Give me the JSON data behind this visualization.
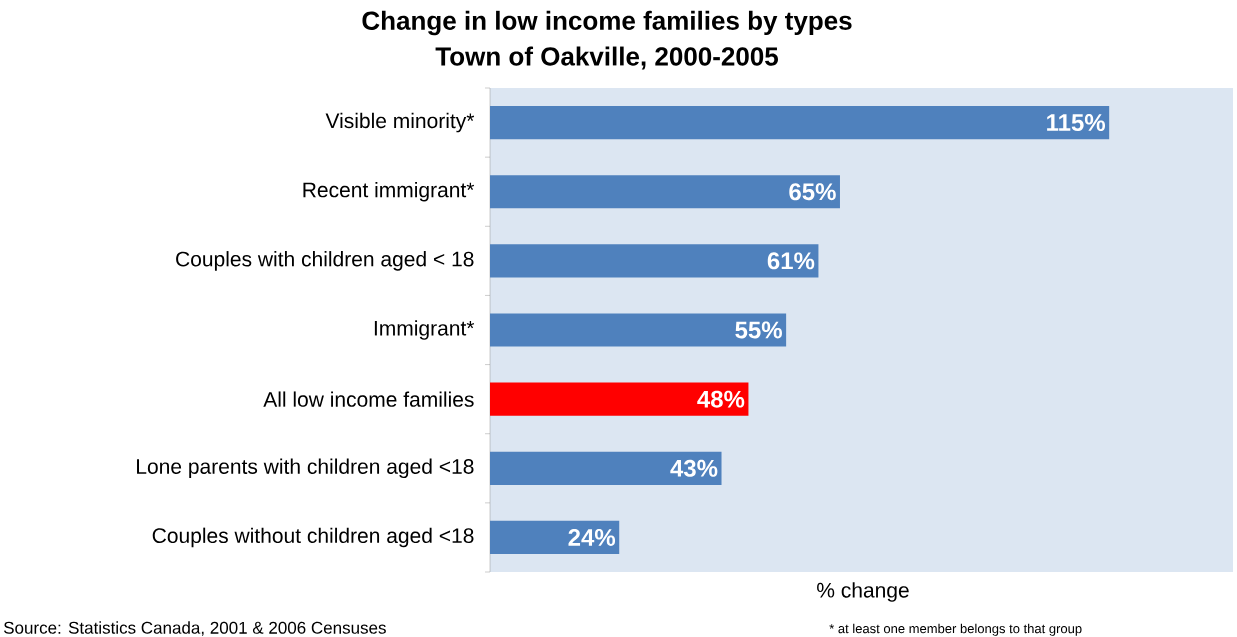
{
  "chart_data": {
    "type": "bar",
    "orientation": "horizontal",
    "title": "Change in low income families by types",
    "subtitle": "Town of Oakville, 2000-2005",
    "xlabel": "% change",
    "categories": [
      "Visible minority*",
      "Recent immigrant*",
      "Couples with children aged < 18",
      "Immigrant*",
      "All low income families",
      "Lone parents with children aged <18",
      "Couples without children aged <18"
    ],
    "values": [
      115,
      65,
      61,
      55,
      48,
      43,
      24
    ],
    "value_labels": [
      "115%",
      "65%",
      "61%",
      "55%",
      "48%",
      "43%",
      "24%"
    ],
    "colors": [
      "#4f81bd",
      "#4f81bd",
      "#4f81bd",
      "#4f81bd",
      "#ff0000",
      "#4f81bd",
      "#4f81bd"
    ],
    "annotations": [
      "Source: Statistics Canada, 2001 & 2006 Censuses",
      "* at least one member belongs to that group"
    ]
  }
}
